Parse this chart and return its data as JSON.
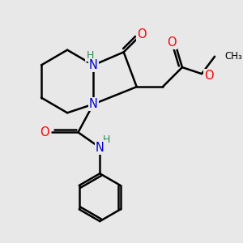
{
  "background_color": "#e8e8e8",
  "atom_colors": {
    "C": "#000000",
    "N": "#0000cd",
    "O": "#ff0000",
    "H": "#2e8b57"
  },
  "bond_color": "#000000",
  "bond_width": 1.8,
  "figsize": [
    3.0,
    3.0
  ],
  "dpi": 100
}
